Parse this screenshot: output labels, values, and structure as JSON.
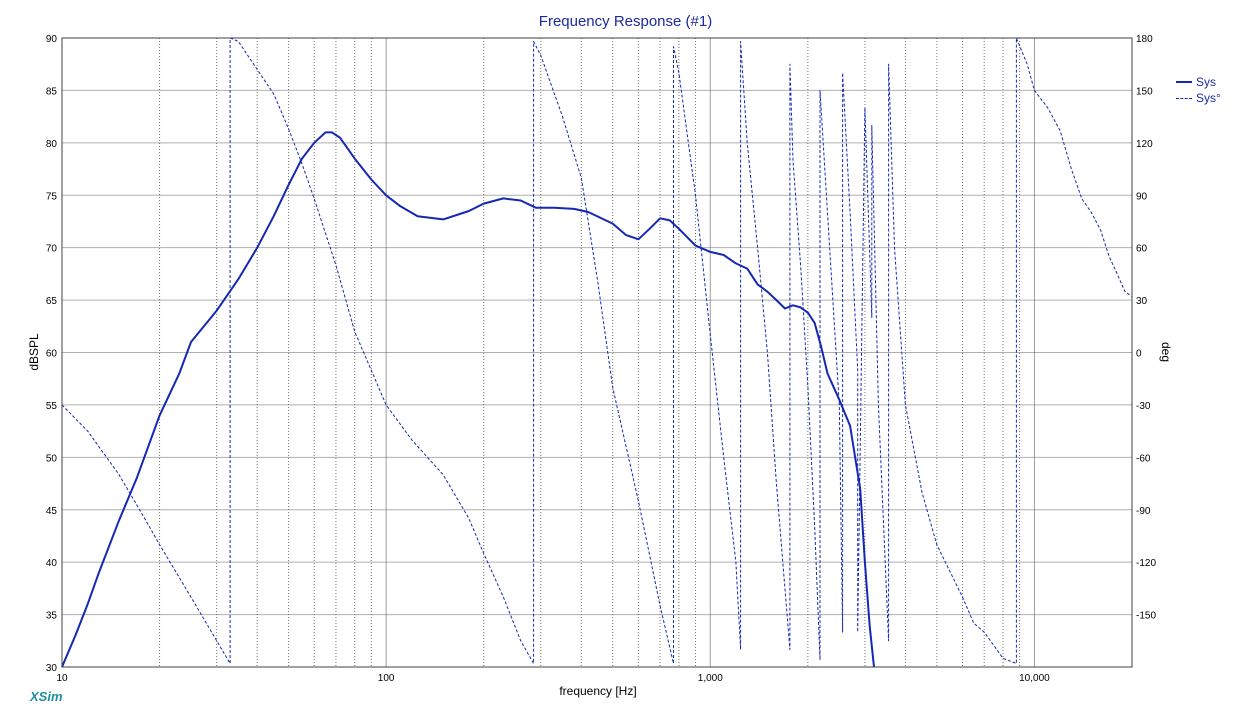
{
  "chart_data": {
    "type": "line",
    "title": "Frequency Response (#1)",
    "xlabel": "frequency [Hz]",
    "ylabel": "dBSPL",
    "ylabel_right": "deg",
    "x_scale": "log",
    "xlim": [
      10,
      20000
    ],
    "ylim": [
      30,
      90
    ],
    "ylim_right": [
      -180,
      180
    ],
    "x_ticks": [
      10,
      100,
      1000,
      10000
    ],
    "x_tick_labels": [
      "10",
      "100",
      "1,000",
      "10,000"
    ],
    "y_ticks": [
      30,
      35,
      40,
      45,
      50,
      55,
      60,
      65,
      70,
      75,
      80,
      85,
      90
    ],
    "y_ticks_right": [
      -150,
      -120,
      -90,
      -60,
      -30,
      0,
      30,
      60,
      90,
      120,
      150,
      180
    ],
    "grid": true,
    "legend_position": "top-right",
    "brand": "XSim",
    "colors": {
      "series": "#1428b4",
      "title": "#1a2aa0",
      "brand": "#1e8fa0"
    },
    "series": [
      {
        "name": "Sys",
        "axis": "left",
        "style": "solid",
        "x": [
          10,
          11,
          12,
          13,
          15,
          17,
          20,
          23,
          25,
          30,
          35,
          40,
          45,
          50,
          55,
          60,
          65,
          68,
          72,
          80,
          90,
          100,
          110,
          125,
          150,
          180,
          200,
          230,
          260,
          290,
          330,
          380,
          420,
          500,
          550,
          600,
          650,
          700,
          750,
          800,
          900,
          1000,
          1100,
          1200,
          1300,
          1400,
          1500,
          1600,
          1700,
          1800,
          1900,
          2000,
          2100,
          2200,
          2300,
          2500,
          2700,
          2900,
          3000,
          3100,
          3200
        ],
        "y": [
          30,
          33,
          36,
          39,
          44,
          48,
          54,
          58,
          61,
          64,
          67,
          70,
          73,
          76,
          78.5,
          80,
          81,
          81,
          80.5,
          78.5,
          76.5,
          75,
          74,
          73,
          72.7,
          73.5,
          74.2,
          74.7,
          74.5,
          73.8,
          73.8,
          73.7,
          73.4,
          72.3,
          71.2,
          70.8,
          71.8,
          72.8,
          72.6,
          71.8,
          70.2,
          69.6,
          69.3,
          68.5,
          68.0,
          66.5,
          65.8,
          65.0,
          64.2,
          64.5,
          64.3,
          63.8,
          62.8,
          60.5,
          58.0,
          55.5,
          53.0,
          47.0,
          40.0,
          34.0,
          30.0
        ]
      },
      {
        "name": "Sys°",
        "axis": "right",
        "style": "dashed",
        "x": [
          10,
          12,
          15,
          18,
          20,
          25,
          30,
          33,
          33,
          35,
          40,
          45,
          50,
          55,
          60,
          70,
          80,
          100,
          120,
          150,
          180,
          200,
          230,
          260,
          285,
          285,
          300,
          350,
          400,
          450,
          500,
          600,
          700,
          770,
          770,
          800,
          900,
          1000,
          1100,
          1200,
          1240,
          1240,
          1300,
          1400,
          1500,
          1600,
          1760,
          1760,
          1800,
          1900,
          2000,
          2100,
          2180,
          2180,
          2300,
          2500,
          2560,
          2560,
          2700,
          2850,
          2850,
          3000,
          3150,
          3150,
          3300,
          3550,
          3550,
          3700,
          4000,
          4500,
          5000,
          6000,
          6500,
          7000,
          8000,
          8800,
          8800,
          9500,
          10000,
          11000,
          12000,
          13000,
          14000,
          15000,
          16000,
          17000,
          18000,
          19000,
          20000
        ],
        "y": [
          -30,
          -45,
          -70,
          -95,
          -110,
          -140,
          -165,
          -178,
          180,
          178,
          162,
          148,
          128,
          108,
          88,
          50,
          12,
          -30,
          -50,
          -70,
          -95,
          -115,
          -140,
          -165,
          -178,
          178,
          170,
          135,
          100,
          40,
          -20,
          -85,
          -145,
          -178,
          175,
          160,
          90,
          10,
          -60,
          -120,
          -170,
          178,
          120,
          60,
          0,
          -75,
          -170,
          165,
          110,
          50,
          -20,
          -100,
          -176,
          150,
          80,
          -30,
          -160,
          160,
          80,
          -10,
          -160,
          140,
          20,
          130,
          -30,
          -165,
          165,
          60,
          -30,
          -80,
          -110,
          -140,
          -155,
          -160,
          -175,
          -178,
          180,
          165,
          150,
          140,
          127,
          105,
          88,
          80,
          70,
          55,
          45,
          35,
          32
        ]
      }
    ]
  }
}
